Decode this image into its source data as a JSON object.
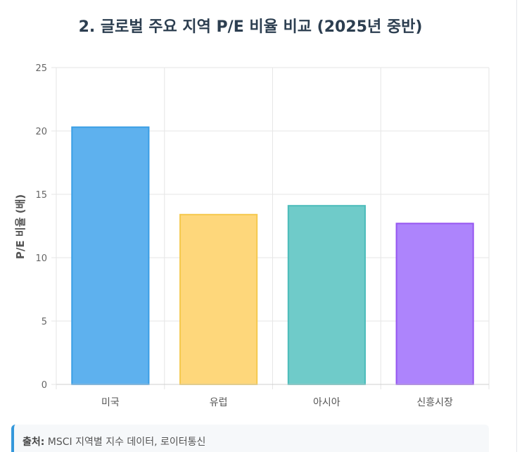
{
  "chart_data": {
    "type": "bar",
    "title": "2. 글로벌 주요 지역 P/E 비율 비교 (2025년 중반)",
    "xlabel": "",
    "ylabel": "P/E 비율 (배)",
    "ylim": [
      0,
      25
    ],
    "yticks": [
      0,
      5,
      10,
      15,
      20,
      25
    ],
    "categories": [
      "미국",
      "유럽",
      "아시아",
      "신흥시장"
    ],
    "values": [
      20.3,
      13.4,
      14.1,
      12.7
    ],
    "colors": {
      "fills": [
        "#5eb1ee",
        "#fed77b",
        "#6fcbc9",
        "#ad84fc"
      ],
      "strokes": [
        "#3a9ee5",
        "#f5c94e",
        "#4bbcba",
        "#9656f0"
      ]
    },
    "grid": true,
    "legend": "none"
  },
  "source": {
    "label": "출처:",
    "text": " MSCI 지역별 지수 데이터, 로이터통신"
  }
}
